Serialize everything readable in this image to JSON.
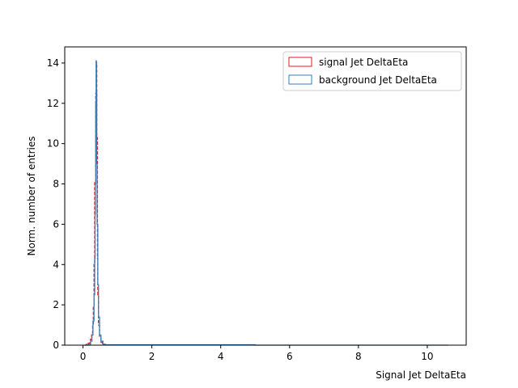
{
  "chart_data": {
    "type": "histogram",
    "xlabel": "Signal Jet DeltaEta",
    "ylabel": "Norm. number of entries",
    "xlim": [
      -0.53,
      11.13
    ],
    "ylim": [
      0,
      14.8
    ],
    "xticks": [
      0,
      2,
      4,
      6,
      8,
      10
    ],
    "yticks": [
      0,
      2,
      4,
      6,
      8,
      10,
      12,
      14
    ],
    "legend_position": "top-right",
    "series": [
      {
        "name": "signal Jet DeltaEta",
        "color": "#e41a1c",
        "linestyle": "dashed",
        "points": [
          [
            0.05,
            0
          ],
          [
            0.1,
            0.05
          ],
          [
            0.15,
            0.1
          ],
          [
            0.2,
            0.15
          ],
          [
            0.22,
            0.3
          ],
          [
            0.25,
            0.6
          ],
          [
            0.28,
            1.0
          ],
          [
            0.3,
            1.9
          ],
          [
            0.32,
            4.0
          ],
          [
            0.34,
            8.1
          ],
          [
            0.35,
            8.1
          ],
          [
            0.37,
            12.5
          ],
          [
            0.39,
            14.0
          ],
          [
            0.4,
            10.3
          ],
          [
            0.42,
            4.3
          ],
          [
            0.43,
            2.5
          ],
          [
            0.45,
            1.0
          ],
          [
            0.48,
            0.4
          ],
          [
            0.52,
            0.15
          ],
          [
            0.56,
            0.05
          ],
          [
            0.6,
            0
          ]
        ]
      },
      {
        "name": "background Jet DeltaEta",
        "color": "#377eb8",
        "linestyle": "solid",
        "points": [
          [
            0.05,
            0
          ],
          [
            0.15,
            0.05
          ],
          [
            0.22,
            0.2
          ],
          [
            0.26,
            0.5
          ],
          [
            0.29,
            1.2
          ],
          [
            0.32,
            2.5
          ],
          [
            0.34,
            4.3
          ],
          [
            0.35,
            6.5
          ],
          [
            0.36,
            8.0
          ],
          [
            0.37,
            12.0
          ],
          [
            0.38,
            14.1
          ],
          [
            0.39,
            12.6
          ],
          [
            0.4,
            9.0
          ],
          [
            0.41,
            6.0
          ],
          [
            0.43,
            3.0
          ],
          [
            0.45,
            1.4
          ],
          [
            0.48,
            0.5
          ],
          [
            0.52,
            0.2
          ],
          [
            0.58,
            0.05
          ],
          [
            0.65,
            0.02
          ],
          [
            5.0,
            0.0
          ],
          [
            10.6,
            0
          ]
        ]
      }
    ]
  }
}
